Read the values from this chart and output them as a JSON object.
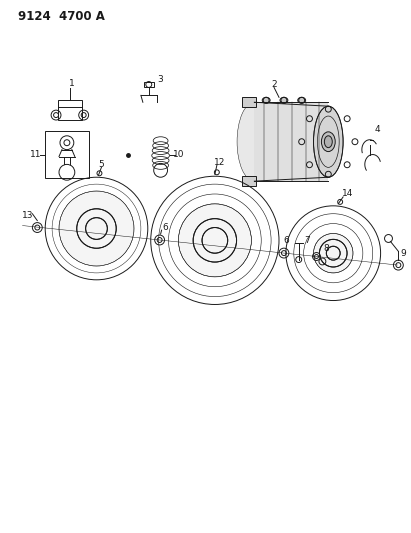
{
  "title": "9124  4700 A",
  "bg": "#ffffff",
  "lc": "#1a1a1a",
  "title_fs": 8.5,
  "label_fs": 6.5
}
